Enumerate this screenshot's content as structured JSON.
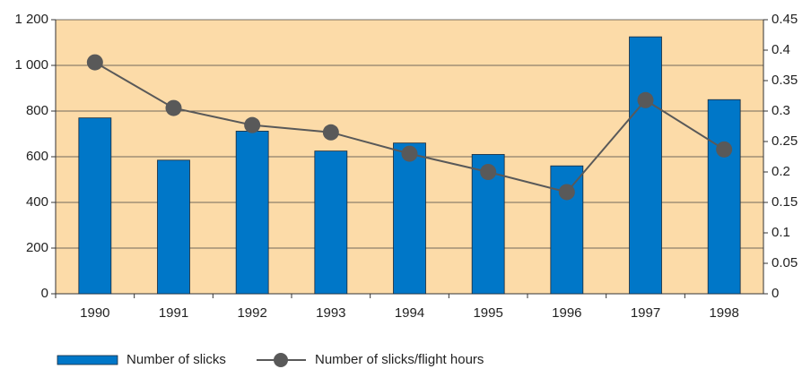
{
  "chart_data": {
    "type": "bar_line",
    "categories": [
      "1990",
      "1991",
      "1992",
      "1993",
      "1994",
      "1995",
      "1996",
      "1997",
      "1998"
    ],
    "series": [
      {
        "name": "Number of slicks",
        "type": "bar",
        "color": "#0077c8",
        "values": [
          770,
          585,
          712,
          625,
          660,
          610,
          560,
          1125,
          850
        ]
      },
      {
        "name": "Number of slicks/flight hours",
        "type": "line",
        "axis": "y2",
        "color": "#595959",
        "values": [
          0.38,
          0.305,
          0.277,
          0.265,
          0.23,
          0.2,
          0.167,
          0.318,
          0.237
        ]
      }
    ],
    "ylim": [
      0,
      1200
    ],
    "yticks": [
      0,
      200,
      400,
      600,
      800,
      {
        "value": 1000,
        "label": "1 000"
      },
      {
        "value": 1200,
        "label": "1 200"
      }
    ],
    "y2lim": [
      0,
      0.45
    ],
    "y2ticks": [
      0,
      0.05,
      0.1,
      0.15,
      0.2,
      0.25,
      0.3,
      0.35,
      0.4,
      0.45
    ],
    "grid": true,
    "background": "#fcdba8",
    "legend": "bottom"
  }
}
